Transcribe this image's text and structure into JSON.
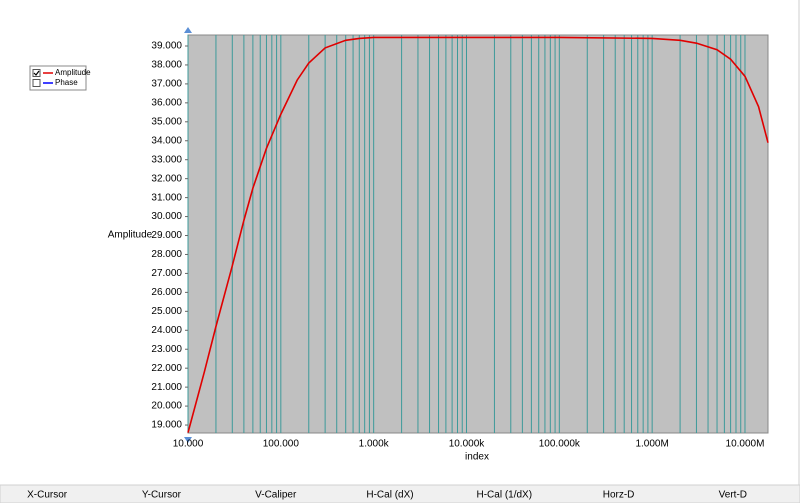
{
  "chart_data": {
    "type": "line",
    "y_label": "Amplitude",
    "x_label": "index",
    "xscale": "log",
    "grid": "x",
    "grid_color": "#3d9a9a",
    "background": "#c0c0c0",
    "xlim": [
      10,
      17700000
    ],
    "ylim": [
      18.58,
      39.58
    ],
    "xticks": [
      {
        "value": 10,
        "label": "10.000"
      },
      {
        "value": 100,
        "label": "100.000"
      },
      {
        "value": 1000,
        "label": "1.000k"
      },
      {
        "value": 10000,
        "label": "10.000k"
      },
      {
        "value": 100000,
        "label": "100.000k"
      },
      {
        "value": 1000000,
        "label": "1.000M"
      },
      {
        "value": 10000000,
        "label": "10.000M"
      }
    ],
    "x_minor_ticks": [
      20,
      30,
      40,
      50,
      60,
      70,
      80,
      90,
      200,
      300,
      400,
      500,
      600,
      700,
      800,
      900,
      2000,
      3000,
      4000,
      5000,
      6000,
      7000,
      8000,
      9000,
      20000,
      30000,
      40000,
      50000,
      60000,
      70000,
      80000,
      90000,
      200000,
      300000,
      400000,
      500000,
      600000,
      700000,
      800000,
      900000,
      2000000,
      3000000,
      4000000,
      5000000,
      6000000,
      7000000,
      8000000,
      9000000
    ],
    "yticks": [
      {
        "value": 19,
        "label": "19.000"
      },
      {
        "value": 20,
        "label": "20.000"
      },
      {
        "value": 21,
        "label": "21.000"
      },
      {
        "value": 22,
        "label": "22.000"
      },
      {
        "value": 23,
        "label": "23.000"
      },
      {
        "value": 24,
        "label": "24.000"
      },
      {
        "value": 25,
        "label": "25.000"
      },
      {
        "value": 26,
        "label": "26.000"
      },
      {
        "value": 27,
        "label": "27.000"
      },
      {
        "value": 28,
        "label": "28.000"
      },
      {
        "value": 29,
        "label": "29.000"
      },
      {
        "value": 30,
        "label": "30.000"
      },
      {
        "value": 31,
        "label": "31.000"
      },
      {
        "value": 32,
        "label": "32.000"
      },
      {
        "value": 33,
        "label": "33.000"
      },
      {
        "value": 34,
        "label": "34.000"
      },
      {
        "value": 35,
        "label": "35.000"
      },
      {
        "value": 36,
        "label": "36.000"
      },
      {
        "value": 37,
        "label": "37.000"
      },
      {
        "value": 38,
        "label": "38.000"
      },
      {
        "value": 39,
        "label": "39.000"
      }
    ],
    "x": [
      10,
      15,
      20,
      30,
      40,
      50,
      70,
      100,
      150,
      200,
      300,
      500,
      700,
      1000,
      10000,
      100000,
      1000000,
      2000000,
      3000000,
      5000000,
      7000000,
      10000000,
      14000000,
      17700000
    ],
    "series": [
      {
        "name": "Amplitude",
        "color": "#e00000",
        "checked": true,
        "values": [
          18.6,
          21.8,
          24.2,
          27.4,
          29.8,
          31.5,
          33.6,
          35.4,
          37.2,
          38.1,
          38.9,
          39.3,
          39.4,
          39.45,
          39.45,
          39.45,
          39.4,
          39.3,
          39.15,
          38.8,
          38.3,
          37.4,
          35.8,
          33.9
        ]
      }
    ],
    "inactive_series": [
      {
        "name": "Phase",
        "color": "#0000ff",
        "checked": false
      }
    ]
  },
  "toolbar": [
    "X-Cursor",
    "Y-Cursor",
    "V-Caliper",
    "H-Cal (dX)",
    "H-Cal (1/dX)",
    "Horz-D",
    "Vert-D"
  ]
}
